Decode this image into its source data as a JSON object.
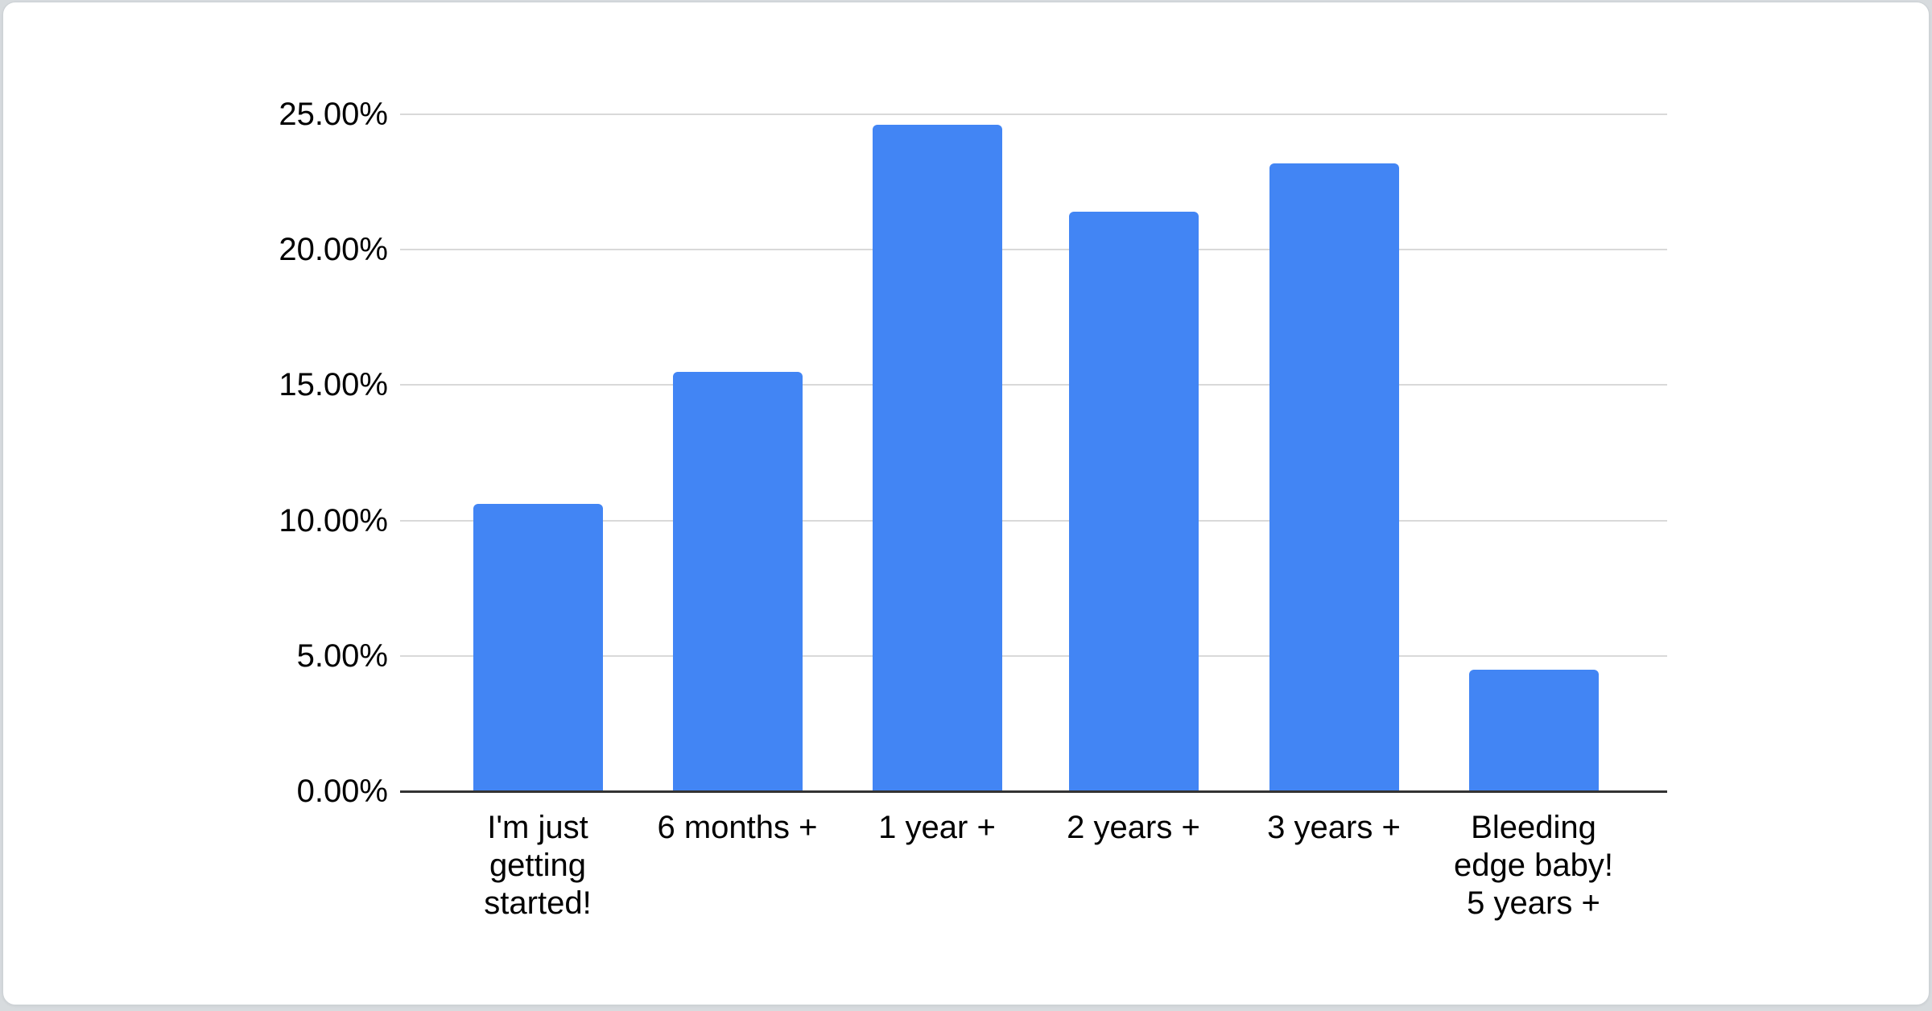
{
  "window": {
    "background_color": "#d7dbde"
  },
  "card": {
    "background_color": "#ffffff",
    "border_color": "#cdd2d6"
  },
  "chart_data": {
    "type": "bar",
    "title": "",
    "xlabel": "",
    "ylabel": "",
    "categories": [
      "I'm just getting started!",
      "6 months +",
      "1 year +",
      "2 years +",
      "3 years +",
      "Bleeding edge baby! 5 years +"
    ],
    "category_lines": [
      [
        "I'm just",
        "getting",
        "started!"
      ],
      [
        "6 months +"
      ],
      [
        "1 year +"
      ],
      [
        "2 years +"
      ],
      [
        "3 years +"
      ],
      [
        "Bleeding",
        "edge baby!",
        "5 years +"
      ]
    ],
    "values": [
      10.6,
      15.5,
      24.6,
      21.4,
      23.2,
      4.5
    ],
    "unit": "%",
    "ylim": [
      0,
      25
    ],
    "y_tick_interval": 5,
    "y_ticks": [
      {
        "value": 25,
        "label": "25.00%"
      },
      {
        "value": 20,
        "label": "20.00%"
      },
      {
        "value": 15,
        "label": "15.00%"
      },
      {
        "value": 10,
        "label": "10.00%"
      },
      {
        "value": 5,
        "label": "5.00%"
      },
      {
        "value": 0,
        "label": "0.00%"
      }
    ],
    "grid": true,
    "legend": "none",
    "colors": {
      "bar": "#4285F4",
      "gridline": "#d9d9d9",
      "axis_line": "#333333",
      "tick_text": "#000000"
    }
  }
}
